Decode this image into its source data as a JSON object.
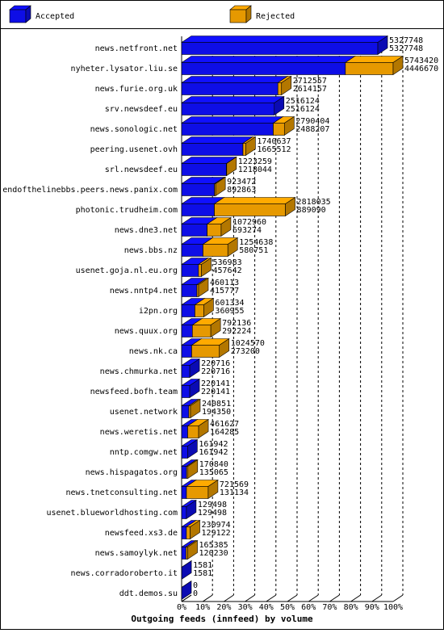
{
  "chart_data": {
    "type": "bar3d",
    "title": "Outgoing feeds (innfeed) by volume",
    "categories": [
      "news.netfront.net",
      "nyheter.lysator.liu.se",
      "news.furie.org.uk",
      "srv.newsdeef.eu",
      "news.sonologic.net",
      "peering.usenet.ovh",
      "srl.newsdeef.eu",
      "endofthelinebbs.peers.news.panix.com",
      "photonic.trudheim.com",
      "news.dne3.net",
      "news.bbs.nz",
      "usenet.goja.nl.eu.org",
      "news.nntp4.net",
      "i2pn.org",
      "news.quux.org",
      "news.nk.ca",
      "news.chmurka.net",
      "newsfeed.bofh.team",
      "usenet.network",
      "news.weretis.net",
      "nntp.comgw.net",
      "news.hispagatos.org",
      "news.tnetconsulting.net",
      "usenet.blueworldhosting.com",
      "newsfeed.xs3.de",
      "news.samoylyk.net",
      "news.corradoroberto.it",
      "ddt.demos.su"
    ],
    "totals": [
      5327748,
      5743420,
      2712557,
      2516124,
      2790404,
      1740637,
      1223259,
      923472,
      2818035,
      1072960,
      1254638,
      536983,
      460113,
      601334,
      792136,
      1024570,
      220716,
      220141,
      240851,
      461627,
      161942,
      170840,
      721569,
      129498,
      230974,
      165385,
      1581,
      0
    ],
    "series": [
      {
        "name": "Accepted",
        "color": "#1010ff",
        "values": [
          5327748,
          4446670,
          2614157,
          2516124,
          2488207,
          1665512,
          1218044,
          892863,
          889090,
          693274,
          580751,
          457642,
          415777,
          360955,
          292224,
          273200,
          220716,
          220141,
          194350,
          164285,
          161942,
          135065,
          131134,
          129498,
          129122,
          120230,
          1581,
          0
        ]
      },
      {
        "name": "Rejected",
        "color": "#ffaa00",
        "values": [
          0,
          1296750,
          98400,
          0,
          302197,
          75125,
          5215,
          30609,
          1928945,
          379686,
          673887,
          79341,
          44336,
          240379,
          499912,
          751370,
          0,
          0,
          46501,
          297342,
          0,
          35775,
          590435,
          0,
          101852,
          45155,
          0,
          0
        ]
      }
    ],
    "xlim": [
      0,
      100
    ],
    "xticks": [
      {
        "value": 0,
        "label": "0%"
      },
      {
        "value": 10,
        "label": "10%"
      },
      {
        "value": 20,
        "label": "20%"
      },
      {
        "value": 30,
        "label": "30%"
      },
      {
        "value": 40,
        "label": "40%"
      },
      {
        "value": 50,
        "label": "50%"
      },
      {
        "value": 60,
        "label": "60%"
      },
      {
        "value": 70,
        "label": "70%"
      },
      {
        "value": 80,
        "label": "80%"
      },
      {
        "value": 90,
        "label": "90%"
      },
      {
        "value": 100,
        "label": "100%"
      }
    ],
    "grid": true
  }
}
